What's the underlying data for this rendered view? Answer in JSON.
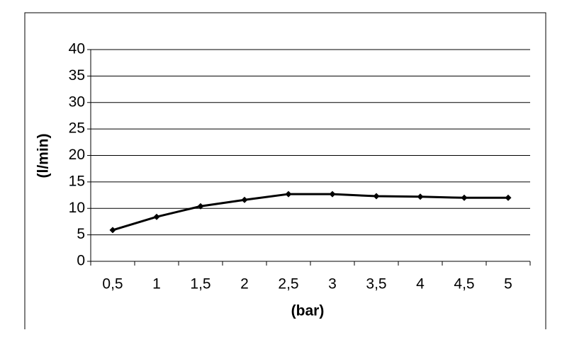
{
  "chart_data": {
    "type": "line",
    "x_label": "(bar)",
    "y_label": "(l/min)",
    "categories": [
      "0,5",
      "1",
      "1,5",
      "2",
      "2,5",
      "3",
      "3,5",
      "4",
      "4,5",
      "5"
    ],
    "values": [
      5.9,
      8.4,
      10.4,
      11.6,
      12.7,
      12.7,
      12.3,
      12.2,
      12.0,
      12.0
    ],
    "color": "#000000",
    "ylim": [
      0,
      40
    ],
    "yticks": [
      0,
      5,
      10,
      15,
      20,
      25,
      30,
      35,
      40
    ],
    "grid": true
  }
}
